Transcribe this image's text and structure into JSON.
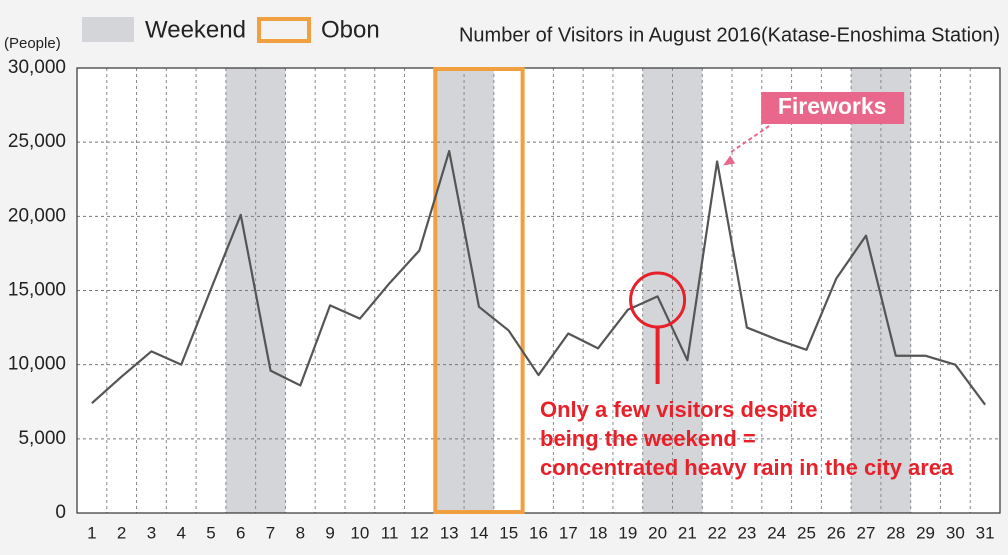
{
  "chart_data": {
    "type": "line",
    "title": "Number of Visitors in August 2016(Katase-Enoshima Station)",
    "y_label": "(People)",
    "x": [
      1,
      2,
      3,
      4,
      5,
      6,
      7,
      8,
      9,
      10,
      11,
      12,
      13,
      14,
      15,
      16,
      17,
      18,
      19,
      20,
      21,
      22,
      23,
      24,
      25,
      26,
      27,
      28,
      29,
      30,
      31
    ],
    "xlim": [
      0.5,
      31.5
    ],
    "xticks": [
      1,
      2,
      3,
      4,
      5,
      6,
      7,
      8,
      9,
      10,
      11,
      12,
      13,
      14,
      15,
      16,
      17,
      18,
      19,
      20,
      21,
      22,
      23,
      24,
      25,
      26,
      27,
      28,
      29,
      30,
      31
    ],
    "series": [
      {
        "color": "#555555",
        "values": [
          7400,
          9200,
          10900,
          10000,
          15100,
          20100,
          9600,
          8600,
          14000,
          13100,
          15500,
          17700,
          24400,
          13900,
          12300,
          9300,
          12100,
          11100,
          13700,
          14600,
          10300,
          23700,
          12500,
          11700,
          11000,
          15800,
          18700,
          10600,
          10600,
          10000,
          7300
        ]
      }
    ],
    "ylim": [
      0,
      30000
    ],
    "yticks": [
      0,
      {
        "value": 5000,
        "label": "5,000"
      },
      {
        "value": 10000,
        "label": "10,000"
      },
      {
        "value": 15000,
        "label": "15,000"
      },
      {
        "value": 20000,
        "label": "20,000"
      },
      {
        "value": 25000,
        "label": "25,000"
      },
      {
        "value": 30000,
        "label": "30,000"
      }
    ],
    "grid": true,
    "legend": [
      {
        "name": "Weekend",
        "color": "#d4d5d8"
      },
      {
        "name": "Obon",
        "color": "#f0a040"
      }
    ],
    "weekend_ranges": [
      [
        6,
        7
      ],
      [
        13,
        14
      ],
      [
        20,
        21
      ],
      [
        27,
        28
      ]
    ],
    "obon_range": [
      13,
      15
    ],
    "annotations": [
      {
        "text": "Fireworks",
        "x": 22,
        "color": "#e8678a"
      },
      {
        "lines": [
          "Only a few visitors despite",
          "being the weekend =",
          "concentrated heavy rain in the city area"
        ],
        "x": 20,
        "color": "#e8202a"
      }
    ]
  }
}
